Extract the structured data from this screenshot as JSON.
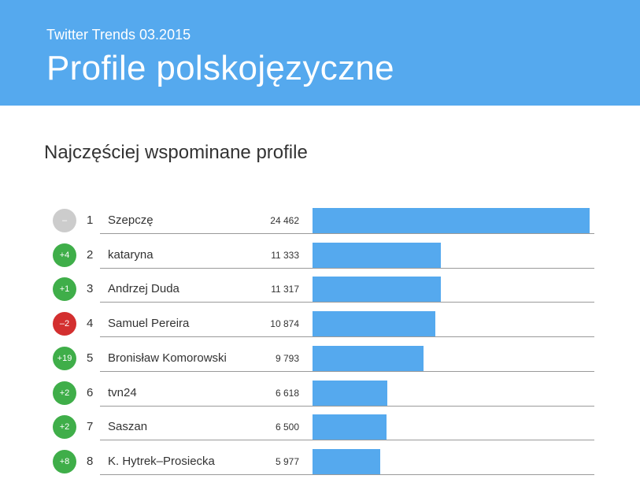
{
  "header": {
    "subtitle": "Twitter Trends 03.2015",
    "title": "Profile polskojęzyczne"
  },
  "section_title": "Najczęściej wspominane profile",
  "colors": {
    "header_bg": "#55a9ee",
    "bar": "#55a9ee",
    "badge_up": "#3fae49",
    "badge_down": "#d32f2f",
    "badge_neutral": "#cccccc"
  },
  "chart_data": {
    "type": "bar",
    "orientation": "horizontal",
    "xlim": [
      0,
      24462
    ],
    "rows": [
      {
        "change": "–",
        "change_dir": "neutral",
        "rank": "1",
        "name": "Szepczę",
        "value": 24462,
        "value_label": "24 462"
      },
      {
        "change": "+4",
        "change_dir": "up",
        "rank": "2",
        "name": "kataryna",
        "value": 11333,
        "value_label": "11 333"
      },
      {
        "change": "+1",
        "change_dir": "up",
        "rank": "3",
        "name": "Andrzej Duda",
        "value": 11317,
        "value_label": "11 317"
      },
      {
        "change": "–2",
        "change_dir": "down",
        "rank": "4",
        "name": "Samuel Pereira",
        "value": 10874,
        "value_label": "10 874"
      },
      {
        "change": "+19",
        "change_dir": "up",
        "rank": "5",
        "name": "Bronisław Komorowski",
        "value": 9793,
        "value_label": "9 793"
      },
      {
        "change": "+2",
        "change_dir": "up",
        "rank": "6",
        "name": "tvn24",
        "value": 6618,
        "value_label": "6 618"
      },
      {
        "change": "+2",
        "change_dir": "up",
        "rank": "7",
        "name": "Saszan",
        "value": 6500,
        "value_label": "6 500"
      },
      {
        "change": "+8",
        "change_dir": "up",
        "rank": "8",
        "name": "K. Hytrek–Prosiecka",
        "value": 5977,
        "value_label": "5 977"
      }
    ]
  }
}
